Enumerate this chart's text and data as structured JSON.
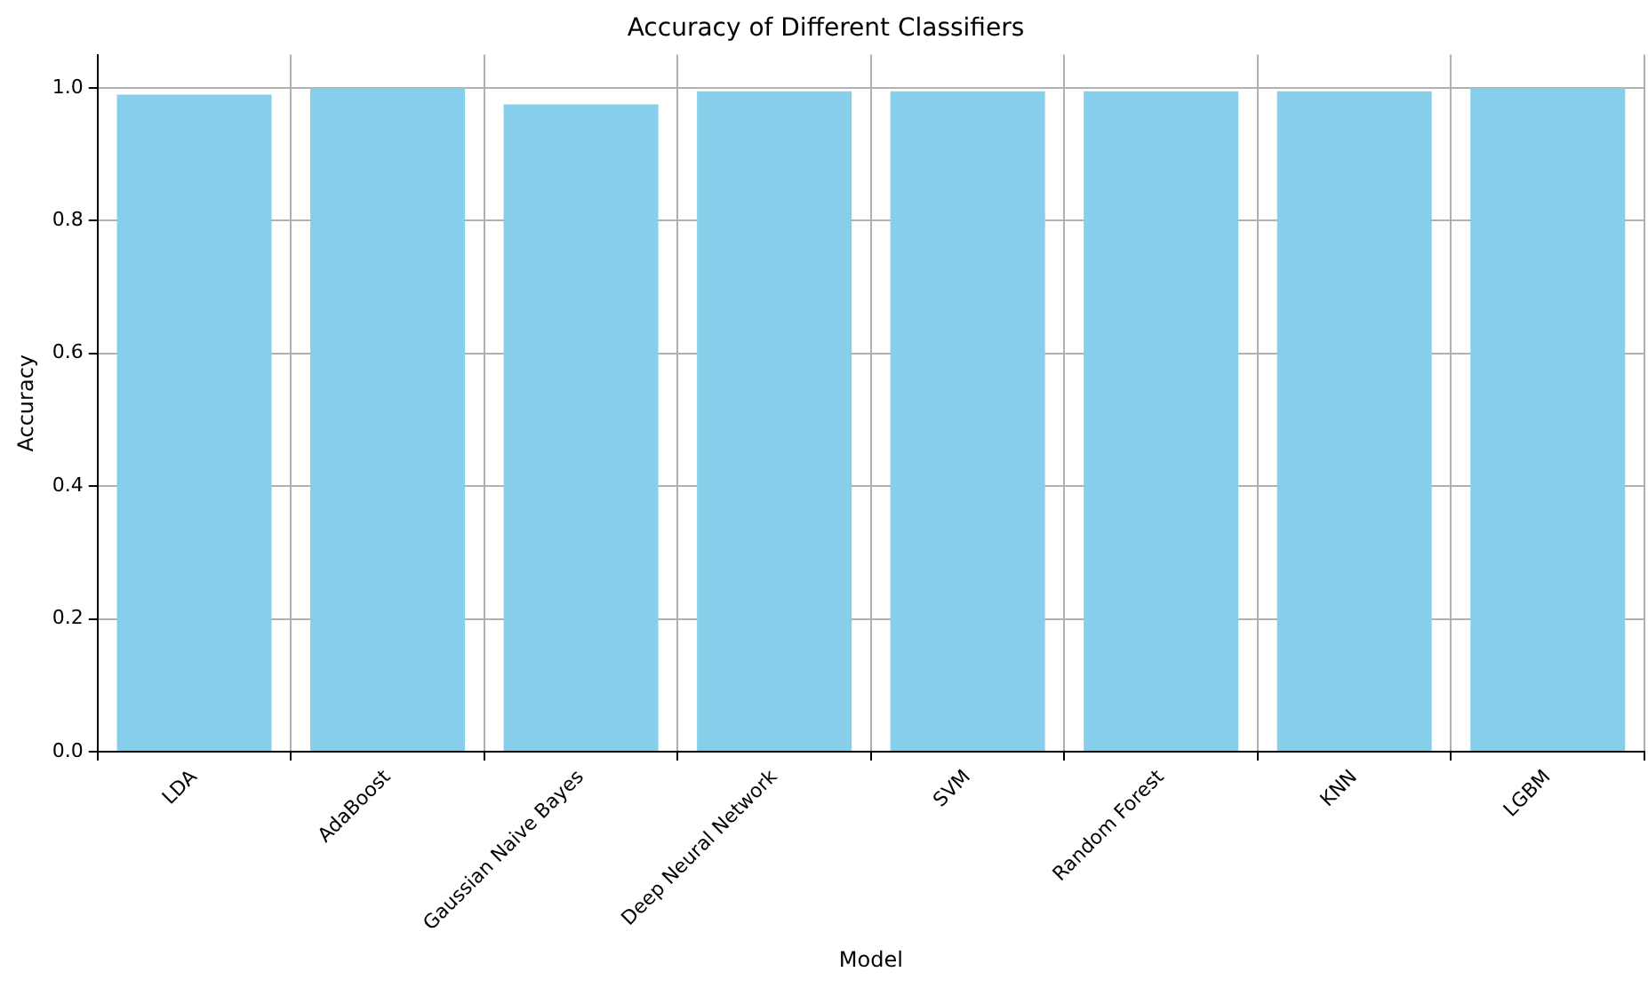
{
  "chart_data": {
    "type": "bar",
    "title": "Accuracy of Different Classifiers",
    "xlabel": "Model",
    "ylabel": "Accuracy",
    "categories": [
      "LDA",
      "AdaBoost",
      "Gaussian Naive Bayes",
      "Deep Neural Network",
      "SVM",
      "Random Forest",
      "KNN",
      "LGBM"
    ],
    "values": [
      0.99,
      1.0,
      0.975,
      0.995,
      0.995,
      0.995,
      0.995,
      1.0
    ],
    "color": "#87ceeb",
    "ylim": [
      0,
      1.05
    ],
    "yticks": [
      {
        "value": 0,
        "label": "0.0"
      },
      {
        "value": 0.2,
        "label": "0.2"
      },
      {
        "value": 0.4,
        "label": "0.4"
      },
      {
        "value": 0.6,
        "label": "0.6"
      },
      {
        "value": 0.8,
        "label": "0.8"
      },
      {
        "value": 1,
        "label": "1.0"
      }
    ],
    "grid": true
  }
}
